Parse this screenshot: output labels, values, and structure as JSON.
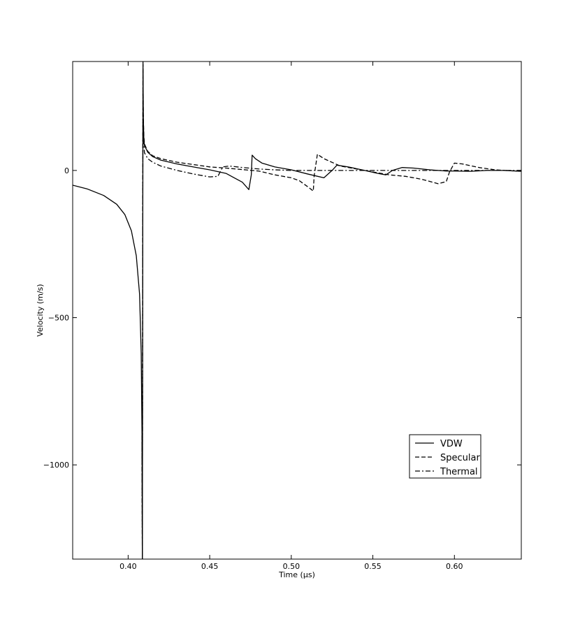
{
  "chart_data": {
    "type": "line",
    "title": "",
    "xlabel": "Time (µs)",
    "ylabel": "Velocity (m/s)",
    "xlim": [
      0.366,
      0.641
    ],
    "ylim": [
      -1320,
      370
    ],
    "x_ticks": [
      0.4,
      0.45,
      0.5,
      0.55,
      0.6
    ],
    "x_tick_labels": [
      "0.40",
      "0.45",
      "0.50",
      "0.55",
      "0.60"
    ],
    "y_ticks": [
      0,
      -500,
      -1000
    ],
    "y_tick_labels": [
      "0",
      "−500",
      "−1000"
    ],
    "grid": false,
    "legend_position": "lower-right",
    "series": [
      {
        "name": "VDW",
        "style": "solid",
        "color": "#000000",
        "x": [
          0.366,
          0.375,
          0.385,
          0.393,
          0.398,
          0.402,
          0.405,
          0.407,
          0.408,
          0.4085,
          0.4087,
          0.4089,
          0.4091,
          0.4093,
          0.4096,
          0.41,
          0.412,
          0.415,
          0.42,
          0.43,
          0.44,
          0.45,
          0.46,
          0.47,
          0.474,
          0.4755,
          0.476,
          0.478,
          0.482,
          0.49,
          0.5,
          0.51,
          0.52,
          0.525,
          0.528,
          0.535,
          0.545,
          0.553,
          0.558,
          0.562,
          0.568,
          0.575,
          0.585,
          0.595,
          0.6,
          0.61,
          0.62,
          0.63,
          0.641
        ],
        "y": [
          -50,
          -63,
          -85,
          -115,
          -150,
          -205,
          -290,
          -420,
          -620,
          -900,
          -1320,
          -600,
          370,
          180,
          110,
          85,
          62,
          47,
          35,
          22,
          12,
          2,
          -10,
          -40,
          -65,
          -15,
          52,
          40,
          25,
          12,
          2,
          -12,
          -25,
          0,
          18,
          12,
          0,
          -10,
          -15,
          0,
          10,
          8,
          2,
          -2,
          -2,
          -3,
          0,
          0,
          -3
        ]
      },
      {
        "name": "Specular",
        "style": "dashed",
        "color": "#000000",
        "x": [
          0.4085,
          0.4087,
          0.4089,
          0.4091,
          0.4093,
          0.4096,
          0.41,
          0.412,
          0.415,
          0.42,
          0.43,
          0.44,
          0.45,
          0.46,
          0.47,
          0.48,
          0.49,
          0.5,
          0.505,
          0.51,
          0.5135,
          0.514,
          0.516,
          0.52,
          0.53,
          0.54,
          0.55,
          0.56,
          0.57,
          0.58,
          0.59,
          0.595,
          0.597,
          0.6,
          0.605,
          0.615,
          0.625,
          0.641
        ],
        "y": [
          -900,
          -1320,
          -400,
          360,
          190,
          120,
          90,
          65,
          50,
          40,
          28,
          20,
          12,
          8,
          3,
          -2,
          -15,
          -25,
          -35,
          -55,
          -70,
          -20,
          55,
          40,
          15,
          5,
          -5,
          -15,
          -20,
          -30,
          -45,
          -38,
          -5,
          25,
          22,
          10,
          2,
          -3
        ]
      },
      {
        "name": "Thermal",
        "style": "dashdot",
        "color": "#000000",
        "x": [
          0.4085,
          0.4087,
          0.4089,
          0.4091,
          0.4093,
          0.4096,
          0.41,
          0.412,
          0.415,
          0.42,
          0.43,
          0.44,
          0.45,
          0.455,
          0.458,
          0.462,
          0.47,
          0.48,
          0.49,
          0.5,
          0.51,
          0.52,
          0.53,
          0.54,
          0.55,
          0.56,
          0.57,
          0.58,
          0.59,
          0.6,
          0.61,
          0.62,
          0.63,
          0.641
        ],
        "y": [
          -900,
          -1320,
          -400,
          340,
          160,
          95,
          60,
          40,
          28,
          15,
          0,
          -12,
          -22,
          -20,
          12,
          15,
          10,
          5,
          2,
          0,
          0,
          0,
          0,
          0,
          0,
          0,
          0,
          0,
          0,
          0,
          0,
          0,
          0,
          0
        ]
      }
    ]
  }
}
